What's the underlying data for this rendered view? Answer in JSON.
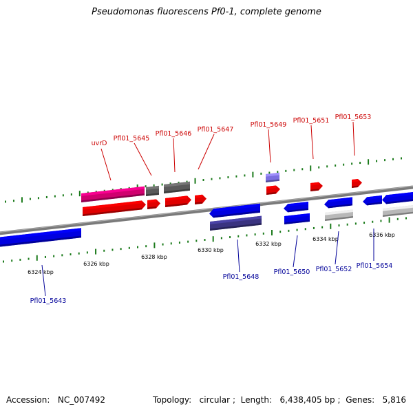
{
  "title": "Pseudomonas fluorescens Pf0-1, complete genome",
  "footer": {
    "accession_label": "Accession:",
    "accession": "NC_007492",
    "topology_label": "Topology:",
    "topology": "circular",
    "length_label": "Length:",
    "length": "6,438,405 bp",
    "genes_label": "Genes:",
    "genes": "5,816"
  },
  "ruler": {
    "ticks": [
      "6324 kbp",
      "6326 kbp",
      "6328 kbp",
      "6330 kbp",
      "6332 kbp",
      "6334 kbp",
      "6336 kbp"
    ]
  },
  "genes_forward": [
    {
      "label": "uvrD",
      "color": "#d0006f",
      "track": "outer"
    },
    {
      "label": "Pfl01_5645",
      "color": "#5a5a5a",
      "track": "outer"
    },
    {
      "label": "Pfl01_5646",
      "color": "#5a5a5a",
      "track": "outer"
    },
    {
      "label": "Pfl01_5647",
      "color": "#e00000",
      "track": "inner"
    },
    {
      "label": "Pfl01_5649",
      "color": "#6a5acd",
      "track": "outer"
    },
    {
      "label": "Pfl01_5651",
      "color": "#e00000",
      "track": "outer"
    },
    {
      "label": "Pfl01_5653",
      "color": "#e00000",
      "track": "outer"
    }
  ],
  "genes_reverse": [
    {
      "label": "Pfl01_5643",
      "color": "#0000e0",
      "track": "inner"
    },
    {
      "label": "Pfl01_5648",
      "color": "#0000e0",
      "track": "inner"
    },
    {
      "label": "Pfl01_5650",
      "color": "#0000e0",
      "track": "inner"
    },
    {
      "label": "Pfl01_5652",
      "color": "#0000e0",
      "track": "inner"
    },
    {
      "label": "Pfl01_5654",
      "color": "#0000e0",
      "track": "inner"
    }
  ],
  "colors": {
    "forward_label": "#cc0000",
    "reverse_label": "#000099",
    "tick": "#1a7a1a",
    "backbone": "#7a7a7a",
    "forward_cds": "#e00000",
    "reverse_cds": "#0000e0",
    "rna": "#d0006f",
    "other_gray": "#5a5a5a",
    "other_purple": "#3a3380",
    "light_gray": "#b8b8b8"
  }
}
